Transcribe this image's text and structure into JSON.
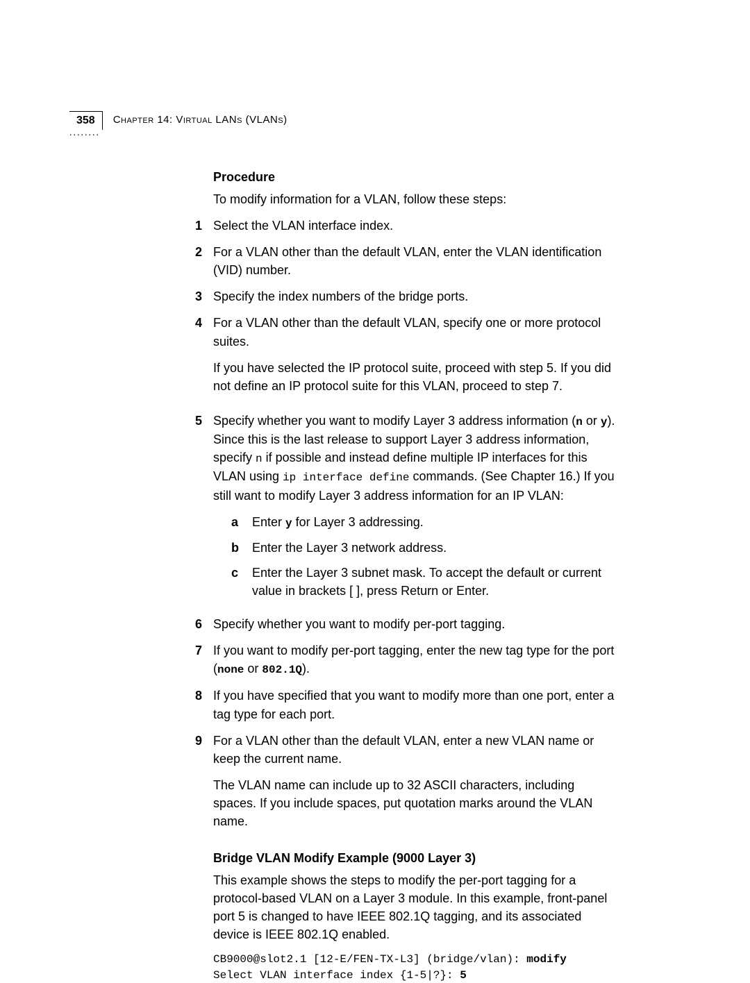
{
  "header": {
    "pageNumber": "358",
    "chapterTitle": "Chapter 14: Virtual LANs (VLANs)",
    "dots": "........"
  },
  "procedure": {
    "title": "Procedure",
    "intro": "To modify information for a VLAN, follow these steps:",
    "steps": {
      "s1num": "1",
      "s1": "Select the VLAN interface index.",
      "s2num": "2",
      "s2": "For a VLAN other than the default VLAN, enter the VLAN identification (VID) number.",
      "s3num": "3",
      "s3": "Specify the index numbers of the bridge ports.",
      "s4num": "4",
      "s4": "For a VLAN other than the default VLAN, specify one or more protocol suites.",
      "s4b": "If you have selected the IP protocol suite, proceed with step 5. If you did not define an IP protocol suite for this VLAN, proceed to step 7.",
      "s5num": "5",
      "s5_p1": "Specify whether you want to modify Layer 3 address information (",
      "s5_n": "n",
      "s5_or": " or ",
      "s5_y": "y",
      "s5_p2": "). Since this is the last release to support Layer 3 address information, specify ",
      "s5_n2": "n",
      "s5_p3": " if possible and instead define multiple IP interfaces for this VLAN using ",
      "s5_cmd": "ip interface define",
      "s5_p4": " commands. (See Chapter 16.) If you still want to modify Layer 3 address information for an IP VLAN:",
      "s5a_letter": "a",
      "s5a_1": "Enter ",
      "s5a_y": "y",
      "s5a_2": " for Layer 3 addressing.",
      "s5b_letter": "b",
      "s5b": "Enter the Layer 3 network address.",
      "s5c_letter": "c",
      "s5c": "Enter the Layer 3 subnet mask. To accept the default or current value in brackets [ ], press Return or Enter.",
      "s6num": "6",
      "s6": "Specify whether you want to modify per-port tagging.",
      "s7num": "7",
      "s7_1": "If you want to modify per-port tagging, enter the new tag type for the port (",
      "s7_none": "none",
      "s7_or": " or ",
      "s7_8021q": "802.1Q",
      "s7_2": ").",
      "s8num": "8",
      "s8": "If you have specified that you want to modify more than one port, enter a tag type for each port.",
      "s9num": "9",
      "s9": "For a VLAN other than the default VLAN, enter a new VLAN name or keep the current name.",
      "s9b": "The VLAN name can include up to 32 ASCII characters, including spaces. If you include spaces, put quotation marks around the VLAN name."
    }
  },
  "example": {
    "title": "Bridge VLAN Modify Example (9000 Layer 3)",
    "text": "This example shows the steps to modify the per-port tagging for a protocol-based VLAN on a Layer 3 module. In this example, front-panel port 5 is changed to have IEEE 802.1Q tagging, and its associated device is IEEE 802.1Q enabled.",
    "code_line1_a": "CB9000@slot2.1 [12-E/FEN-TX-L3] (bridge/vlan): ",
    "code_line1_b": "modify",
    "code_line2_a": "Select VLAN interface index {1-5|?}: ",
    "code_line2_b": "5"
  }
}
